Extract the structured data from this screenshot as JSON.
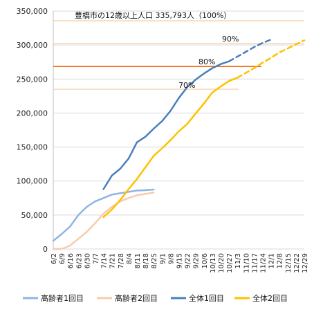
{
  "chart_data": {
    "type": "line",
    "annotation_title": "豊橋市の12歳以上人口 335,793人（100%）",
    "ylim": [
      0,
      350000
    ],
    "y_ticks": [
      "0",
      "50,000",
      "100,000",
      "150,000",
      "200,000",
      "250,000",
      "300,000",
      "350,000"
    ],
    "y_tick_values": [
      0,
      50000,
      100000,
      150000,
      200000,
      250000,
      300000,
      350000
    ],
    "x_ticks": [
      "6/2",
      "6/9",
      "6/16",
      "6/23",
      "6/30",
      "7/7",
      "7/14",
      "7/21",
      "7/28",
      "8/4",
      "8/11",
      "8/18",
      "8/25",
      "9/1",
      "9/8",
      "9/15",
      "9/22",
      "9/29",
      "10/6",
      "10/13",
      "10/20",
      "10/27",
      "11/3",
      "11/10",
      "11/17",
      "11/24",
      "12/1",
      "12/8",
      "12/15",
      "12/22",
      "12/29"
    ],
    "reference_lines": [
      {
        "label": "100%",
        "value": 335793,
        "color": "#f6c9a3"
      },
      {
        "label": "90%",
        "value": 302214,
        "color": "#f6c9a3"
      },
      {
        "label": "80%",
        "value": 268634,
        "color": "#ed7d31"
      },
      {
        "label": "70%",
        "value": 235055,
        "color": "#f6c9a3"
      }
    ],
    "ref_labels": [
      "90%",
      "80%",
      "70%"
    ],
    "series": [
      {
        "name": "高齢者1回目",
        "color": "#8eb4e3",
        "style": "solid",
        "points": [
          [
            0,
            12000
          ],
          [
            1,
            22000
          ],
          [
            2,
            33000
          ],
          [
            3,
            50000
          ],
          [
            4,
            62000
          ],
          [
            5,
            70000
          ],
          [
            6,
            75000
          ],
          [
            7,
            80000
          ],
          [
            8,
            82000
          ],
          [
            9,
            84000
          ],
          [
            10,
            86000
          ],
          [
            11,
            86500
          ],
          [
            12,
            87500
          ]
        ]
      },
      {
        "name": "高齢者2回目",
        "color": "#f8cbad",
        "style": "solid",
        "points": [
          [
            0,
            0
          ],
          [
            1,
            0
          ],
          [
            2,
            5000
          ],
          [
            3,
            15000
          ],
          [
            4,
            25000
          ],
          [
            5,
            38000
          ],
          [
            6,
            52000
          ],
          [
            7,
            62000
          ],
          [
            8,
            70000
          ],
          [
            9,
            75000
          ],
          [
            10,
            79000
          ],
          [
            11,
            81000
          ],
          [
            12,
            83000
          ]
        ]
      },
      {
        "name": "全体1回目",
        "color": "#4a7ebb",
        "style": "solid",
        "points": [
          [
            6,
            88000
          ],
          [
            7,
            108000
          ],
          [
            8,
            118000
          ],
          [
            9,
            133000
          ],
          [
            10,
            157000
          ],
          [
            11,
            165000
          ],
          [
            12,
            177000
          ],
          [
            13,
            188000
          ],
          [
            14,
            203000
          ],
          [
            15,
            222000
          ],
          [
            16,
            238000
          ],
          [
            17,
            249000
          ],
          [
            18,
            258000
          ],
          [
            19,
            266000
          ],
          [
            20,
            272000
          ],
          [
            21,
            276000
          ]
        ]
      },
      {
        "name": "全体1回目",
        "color": "#4a7ebb",
        "style": "dashed",
        "points": [
          [
            21,
            276000
          ],
          [
            22,
            283000
          ],
          [
            23,
            290000
          ],
          [
            24,
            297000
          ],
          [
            25,
            303000
          ],
          [
            26,
            308000
          ]
        ]
      },
      {
        "name": "全体2回目",
        "color": "#ffc000",
        "style": "solid",
        "points": [
          [
            6,
            47000
          ],
          [
            7,
            58000
          ],
          [
            8,
            72000
          ],
          [
            9,
            88000
          ],
          [
            10,
            103000
          ],
          [
            11,
            120000
          ],
          [
            12,
            137000
          ],
          [
            13,
            148000
          ],
          [
            14,
            160000
          ],
          [
            15,
            173000
          ],
          [
            16,
            184000
          ],
          [
            17,
            199000
          ],
          [
            18,
            214000
          ],
          [
            19,
            230000
          ],
          [
            20,
            239000
          ],
          [
            21,
            247000
          ],
          [
            22,
            252000
          ]
        ]
      },
      {
        "name": "全体2回目",
        "color": "#ffc000",
        "style": "dashed",
        "points": [
          [
            22,
            252000
          ],
          [
            23,
            259000
          ],
          [
            24,
            266000
          ],
          [
            25,
            274000
          ],
          [
            26,
            281000
          ],
          [
            27,
            289000
          ],
          [
            28,
            295000
          ],
          [
            29,
            301000
          ],
          [
            30,
            307000
          ]
        ]
      }
    ],
    "legend": [
      {
        "label": "高齢者1回目",
        "color": "#8eb4e3"
      },
      {
        "label": "高齢者2回目",
        "color": "#f8cbad"
      },
      {
        "label": "全体1回目",
        "color": "#4a7ebb"
      },
      {
        "label": "全体2回目",
        "color": "#ffc000"
      }
    ]
  }
}
